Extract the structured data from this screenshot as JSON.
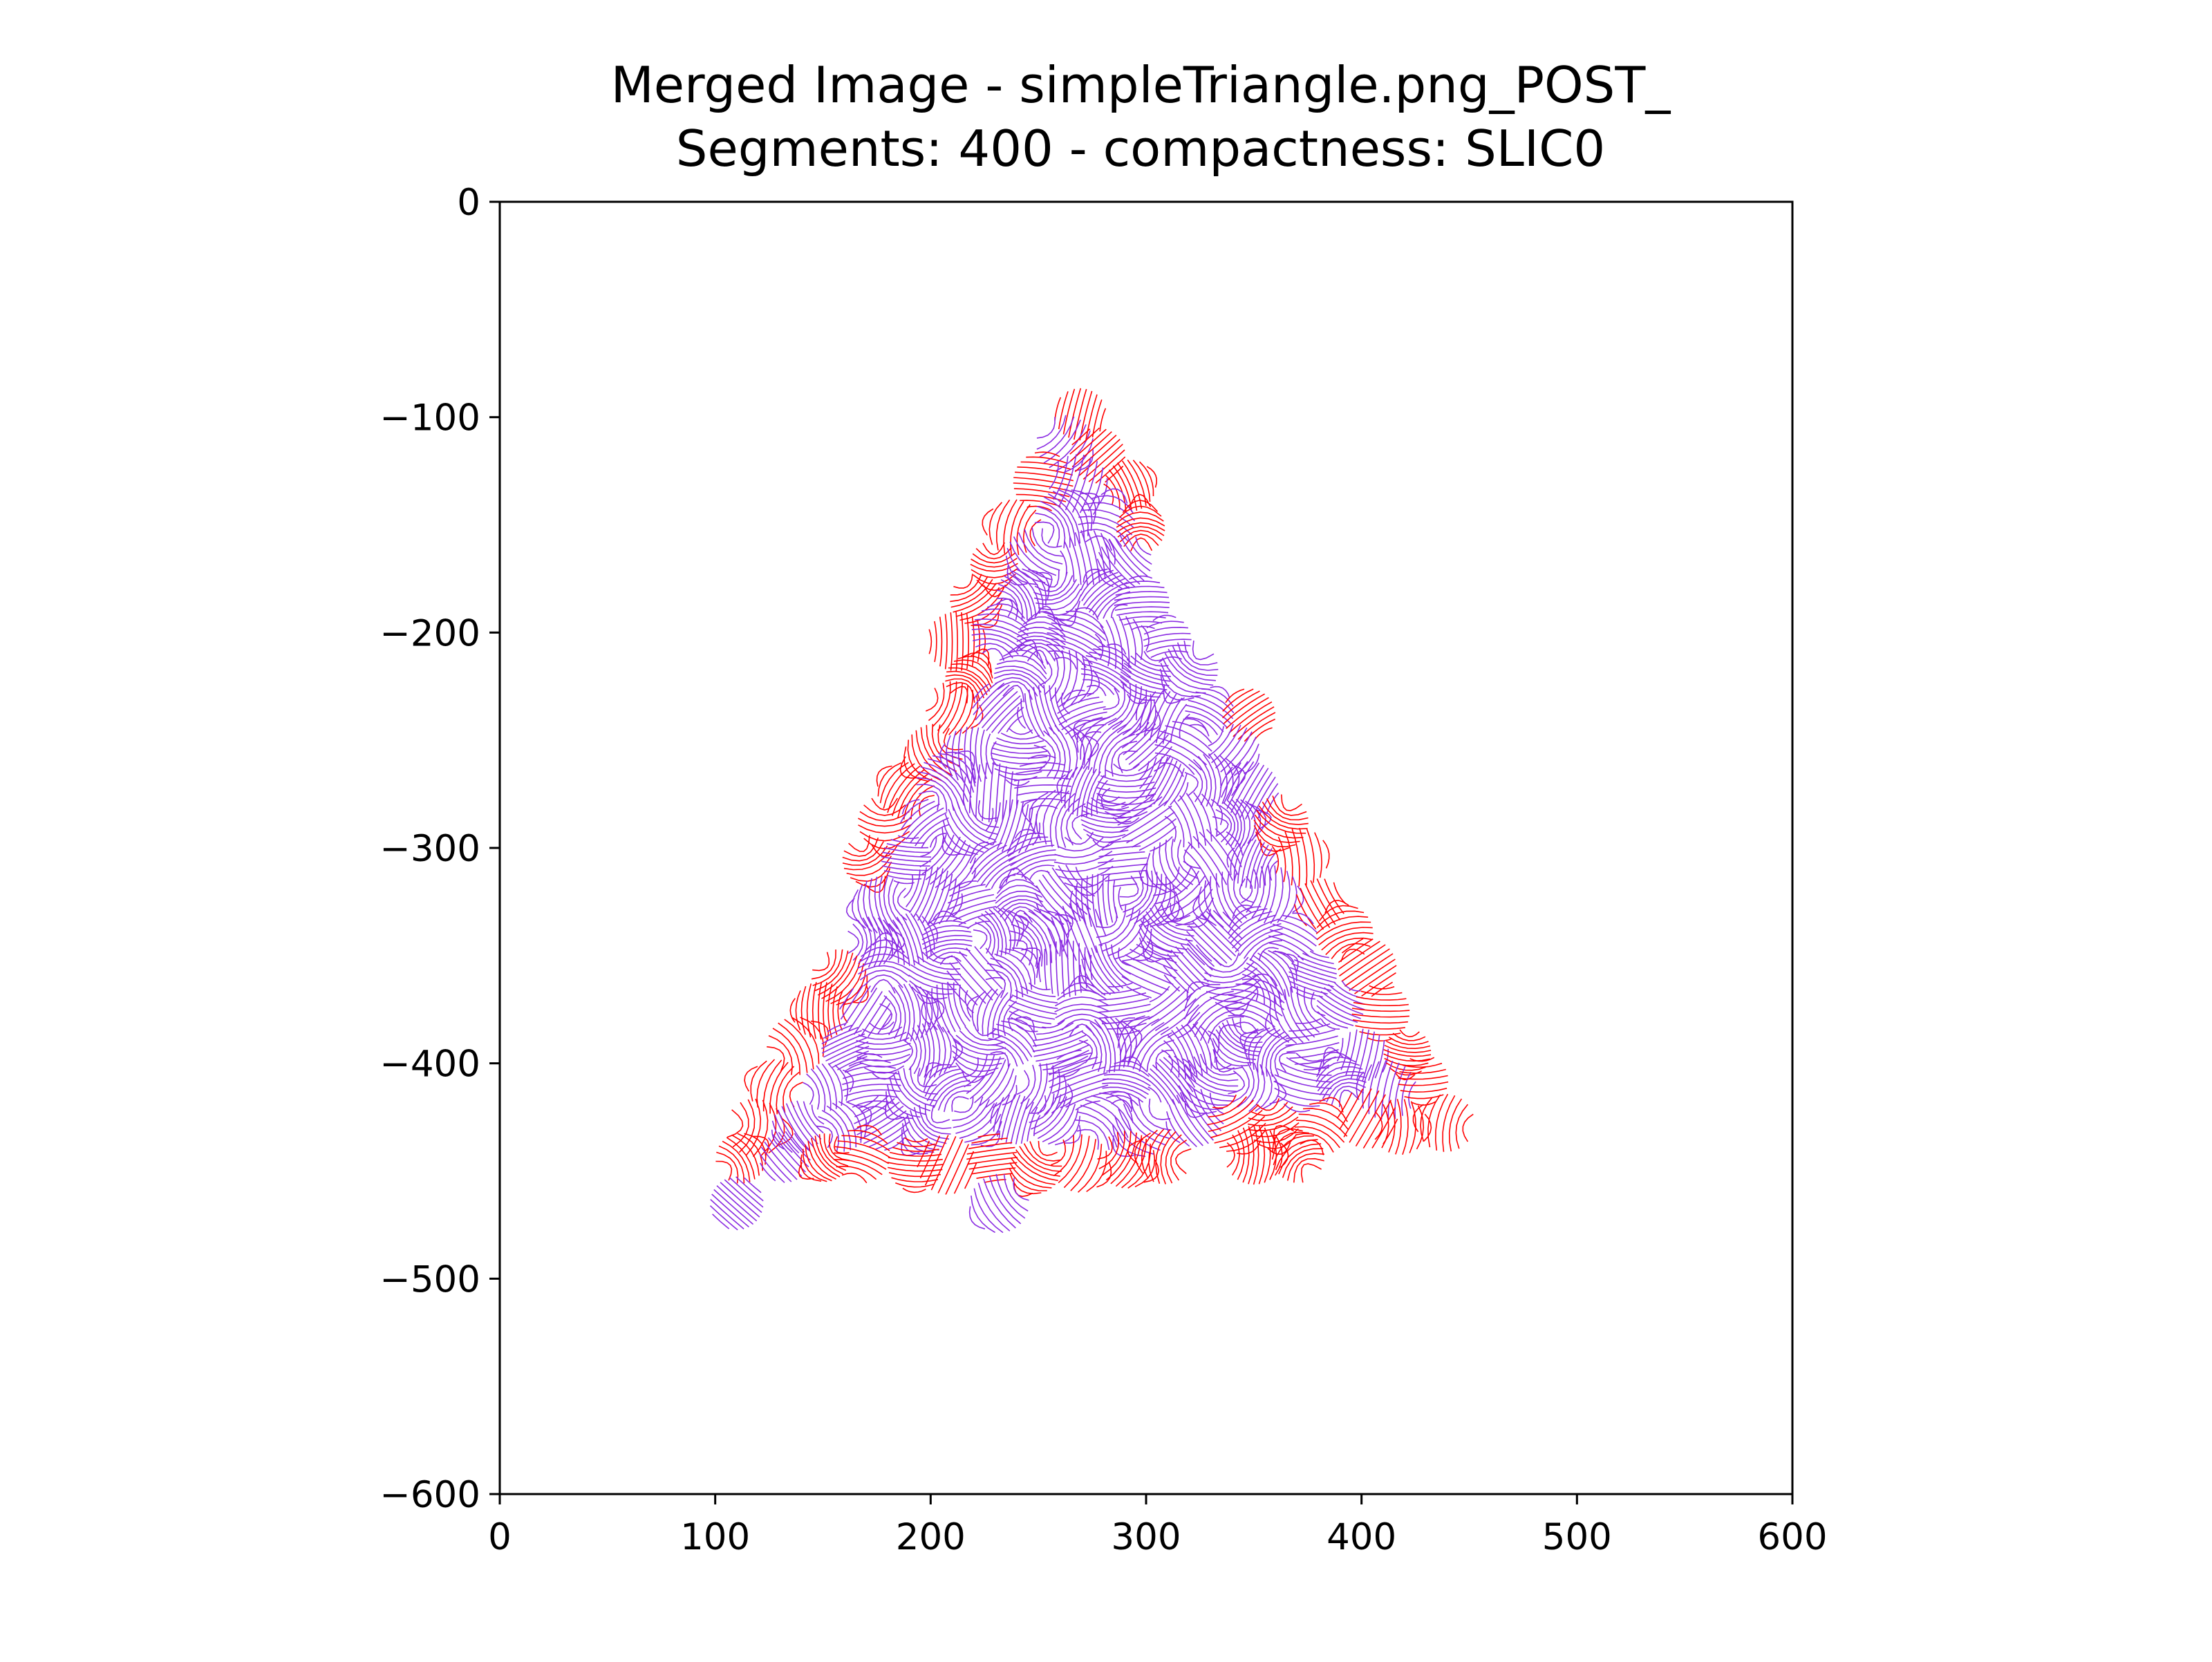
{
  "chart_data": {
    "type": "streamplot",
    "title_lines": [
      "Merged Image - simpleTriangle.png_POST_",
      "Segments: 400 - compactness: SLIC0"
    ],
    "xlabel": "",
    "ylabel": "",
    "xlim": [
      0,
      600
    ],
    "ylim": [
      -600,
      0
    ],
    "x_ticks": [
      0,
      100,
      200,
      300,
      400,
      500,
      600
    ],
    "y_ticks": [
      0,
      -100,
      -200,
      -300,
      -400,
      -500,
      -600
    ],
    "x_tick_labels": [
      "0",
      "100",
      "200",
      "300",
      "400",
      "500",
      "600"
    ],
    "y_tick_labels": [
      "0",
      "−100",
      "−200",
      "−300",
      "−400",
      "−500",
      "−600"
    ],
    "grid": false,
    "triangle_vertices": [
      [
        265,
        -80
      ],
      [
        455,
        -440
      ],
      [
        100,
        -460
      ]
    ],
    "interior_vertices": [
      [
        265,
        -105
      ],
      [
        425,
        -420
      ],
      [
        128,
        -445
      ]
    ],
    "series": [
      {
        "key": "merged",
        "color": "#8a2be2",
        "region": "interior"
      },
      {
        "key": "unmerged",
        "color": "#ff0000",
        "region": "border"
      }
    ],
    "stray_clusters": [
      {
        "center": [
          110,
          -465
        ],
        "color": "#8a2be2"
      },
      {
        "center": [
          232,
          -465
        ],
        "color": "#8a2be2"
      }
    ],
    "segment_spacing": 20
  }
}
